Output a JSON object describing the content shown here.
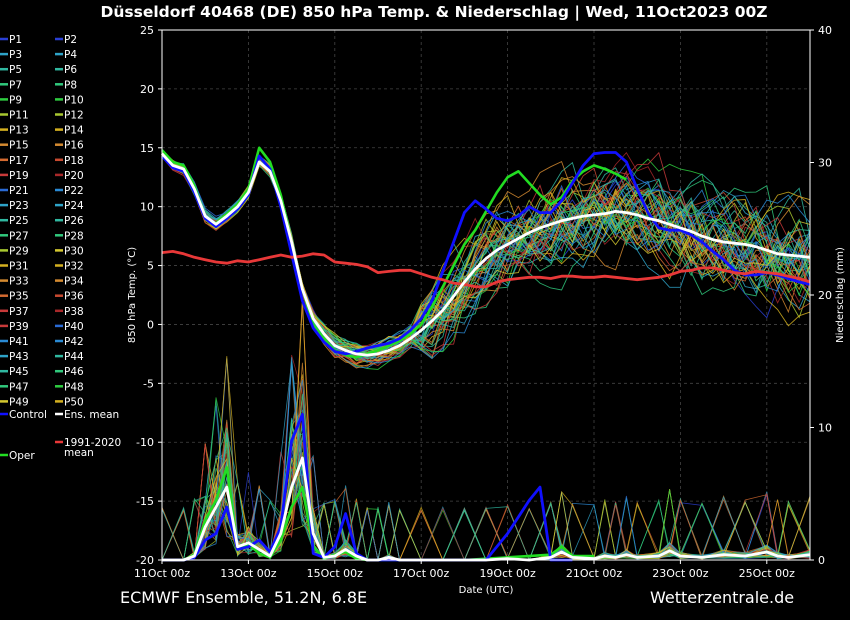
{
  "chart_data": {
    "type": "line",
    "title": "Düsseldorf 40468 (DE)  850 hPa Temp. & Niederschlag | Wed, 11Oct2023 00Z",
    "xlabel": "Date (UTC)",
    "ylabel_left": "850 hPa Temp. (°C)",
    "ylabel_right": "Niederschlag (mm)",
    "ylim_left": [
      -20,
      25
    ],
    "ylim_right": [
      0,
      40
    ],
    "left_ticks": [
      "25",
      "20",
      "15",
      "10",
      "5",
      "0",
      "-5",
      "-10",
      "-15",
      "-20"
    ],
    "right_ticks": [
      "40",
      "30",
      "20",
      "10",
      "0"
    ],
    "x_tick_labels": [
      "11Oct 00z",
      "13Oct 00z",
      "15Oct 00z",
      "17Oct 00z",
      "19Oct 00z",
      "21Oct 00z",
      "23Oct 00z",
      "25Oct 00z"
    ],
    "x_days": [
      0,
      15
    ],
    "grid": true,
    "legend_placement": "left",
    "legend": [
      {
        "label": "P1",
        "color": "#2a3fd4"
      },
      {
        "label": "P2",
        "color": "#2a3fd4"
      },
      {
        "label": "P3",
        "color": "#2ea3c8"
      },
      {
        "label": "P4",
        "color": "#2ea3c8"
      },
      {
        "label": "P5",
        "color": "#30b8a0"
      },
      {
        "label": "P6",
        "color": "#30b8a0"
      },
      {
        "label": "P7",
        "color": "#30c87c"
      },
      {
        "label": "P8",
        "color": "#30c87c"
      },
      {
        "label": "P9",
        "color": "#2ecc40"
      },
      {
        "label": "P10",
        "color": "#2ecc40"
      },
      {
        "label": "P11",
        "color": "#a8c830"
      },
      {
        "label": "P12",
        "color": "#a8c830"
      },
      {
        "label": "P13",
        "color": "#d4b020"
      },
      {
        "label": "P14",
        "color": "#d4b020"
      },
      {
        "label": "P15",
        "color": "#d48a30"
      },
      {
        "label": "P16",
        "color": "#d48a30"
      },
      {
        "label": "P17",
        "color": "#d46a30"
      },
      {
        "label": "P18",
        "color": "#c84a30"
      },
      {
        "label": "P19",
        "color": "#c83a3a"
      },
      {
        "label": "P20",
        "color": "#a8282a"
      },
      {
        "label": "P21",
        "color": "#2a6ad4"
      },
      {
        "label": "P22",
        "color": "#2a8ad4"
      },
      {
        "label": "P23",
        "color": "#2ea3c8"
      },
      {
        "label": "P24",
        "color": "#2ea3c8"
      },
      {
        "label": "P25",
        "color": "#30b8a0"
      },
      {
        "label": "P26",
        "color": "#30b8a0"
      },
      {
        "label": "P27",
        "color": "#30c87c"
      },
      {
        "label": "P28",
        "color": "#30c87c"
      },
      {
        "label": "P29",
        "color": "#a8c830"
      },
      {
        "label": "P30",
        "color": "#d4c830"
      },
      {
        "label": "P31",
        "color": "#d4b020"
      },
      {
        "label": "P32",
        "color": "#d4b020"
      },
      {
        "label": "P33",
        "color": "#d48a30"
      },
      {
        "label": "P34",
        "color": "#d48a30"
      },
      {
        "label": "P35",
        "color": "#d46a30"
      },
      {
        "label": "P36",
        "color": "#c84a30"
      },
      {
        "label": "P37",
        "color": "#c83a3a"
      },
      {
        "label": "P38",
        "color": "#a8282a"
      },
      {
        "label": "P39",
        "color": "#c83a3a"
      },
      {
        "label": "P40",
        "color": "#2a6ad4"
      },
      {
        "label": "P41",
        "color": "#2a8ad4"
      },
      {
        "label": "P42",
        "color": "#2a8ad4"
      },
      {
        "label": "P43",
        "color": "#2ea3c8"
      },
      {
        "label": "P44",
        "color": "#30b8a0"
      },
      {
        "label": "P45",
        "color": "#30b8a0"
      },
      {
        "label": "P46",
        "color": "#30c87c"
      },
      {
        "label": "P47",
        "color": "#30c87c"
      },
      {
        "label": "P48",
        "color": "#2ecc40"
      },
      {
        "label": "P49",
        "color": "#d4c830"
      },
      {
        "label": "P50",
        "color": "#d4b020"
      },
      {
        "label": "Control",
        "color": "#1010ff"
      },
      {
        "label": "Ens. mean",
        "color": "#ffffff"
      },
      {
        "label": "1991-2020\nmean",
        "color": "#e83838"
      },
      {
        "label": "Oper",
        "color": "#22dd22"
      }
    ],
    "ens_mean_temp": [
      [
        0,
        14.5
      ],
      [
        0.25,
        13.5
      ],
      [
        0.5,
        13.2
      ],
      [
        0.75,
        11.5
      ],
      [
        1,
        9.2
      ],
      [
        1.25,
        8.5
      ],
      [
        1.5,
        9.2
      ],
      [
        1.75,
        10
      ],
      [
        2,
        11.2
      ],
      [
        2.25,
        13.8
      ],
      [
        2.5,
        13
      ],
      [
        2.75,
        10.5
      ],
      [
        3,
        7
      ],
      [
        3.25,
        3
      ],
      [
        3.5,
        0.5
      ],
      [
        3.75,
        -0.8
      ],
      [
        4,
        -1.8
      ],
      [
        4.25,
        -2.2
      ],
      [
        4.5,
        -2.5
      ],
      [
        4.75,
        -2.6
      ],
      [
        5,
        -2.5
      ],
      [
        5.25,
        -2.2
      ],
      [
        5.5,
        -1.8
      ],
      [
        5.75,
        -1.2
      ],
      [
        6,
        -0.5
      ],
      [
        6.25,
        0.3
      ],
      [
        6.5,
        1.2
      ],
      [
        6.75,
        2.4
      ],
      [
        7,
        3.6
      ],
      [
        7.25,
        4.7
      ],
      [
        7.5,
        5.6
      ],
      [
        7.75,
        6.3
      ],
      [
        8,
        6.8
      ],
      [
        8.25,
        7.3
      ],
      [
        8.5,
        7.8
      ],
      [
        8.75,
        8.2
      ],
      [
        9,
        8.5
      ],
      [
        9.25,
        8.8
      ],
      [
        9.5,
        9.0
      ],
      [
        9.75,
        9.2
      ],
      [
        10,
        9.3
      ],
      [
        10.25,
        9.4
      ],
      [
        10.5,
        9.6
      ],
      [
        10.75,
        9.5
      ],
      [
        11,
        9.3
      ],
      [
        11.25,
        9.0
      ],
      [
        11.5,
        8.8
      ],
      [
        11.75,
        8.5
      ],
      [
        12,
        8.2
      ],
      [
        12.25,
        7.9
      ],
      [
        12.5,
        7.5
      ],
      [
        12.75,
        7.2
      ],
      [
        13,
        7.0
      ],
      [
        13.25,
        6.9
      ],
      [
        13.5,
        6.8
      ],
      [
        13.75,
        6.6
      ],
      [
        14,
        6.3
      ],
      [
        14.25,
        6.0
      ],
      [
        14.5,
        5.9
      ],
      [
        14.75,
        5.8
      ],
      [
        15,
        5.7
      ]
    ],
    "control_temp": [
      [
        0,
        14.3
      ],
      [
        0.25,
        13.3
      ],
      [
        0.5,
        13.0
      ],
      [
        0.75,
        11.2
      ],
      [
        1,
        9.0
      ],
      [
        1.25,
        8.3
      ],
      [
        1.5,
        9.0
      ],
      [
        1.75,
        9.8
      ],
      [
        2,
        11.0
      ],
      [
        2.25,
        14.3
      ],
      [
        2.5,
        13.2
      ],
      [
        2.75,
        10.0
      ],
      [
        3,
        6.0
      ],
      [
        3.25,
        2.0
      ],
      [
        3.5,
        -0.3
      ],
      [
        3.75,
        -1.5
      ],
      [
        4,
        -2.3
      ],
      [
        4.25,
        -2.5
      ],
      [
        4.5,
        -2.3
      ],
      [
        4.75,
        -2.0
      ],
      [
        5,
        -1.8
      ],
      [
        5.25,
        -1.6
      ],
      [
        5.5,
        -1.2
      ],
      [
        5.75,
        -0.5
      ],
      [
        6,
        0.5
      ],
      [
        6.25,
        2.0
      ],
      [
        6.5,
        4.5
      ],
      [
        6.75,
        7.0
      ],
      [
        7,
        9.5
      ],
      [
        7.25,
        10.5
      ],
      [
        7.5,
        9.8
      ],
      [
        7.75,
        9.0
      ],
      [
        8,
        8.8
      ],
      [
        8.25,
        9.2
      ],
      [
        8.5,
        10.0
      ],
      [
        8.75,
        9.5
      ],
      [
        9,
        9.5
      ],
      [
        9.25,
        10.5
      ],
      [
        9.5,
        12.0
      ],
      [
        9.75,
        13.5
      ],
      [
        10,
        14.5
      ],
      [
        10.25,
        14.6
      ],
      [
        10.5,
        14.6
      ],
      [
        10.75,
        13.8
      ],
      [
        11,
        11.5
      ],
      [
        11.25,
        9.5
      ],
      [
        11.5,
        8.2
      ],
      [
        11.75,
        8.0
      ],
      [
        12,
        8.0
      ],
      [
        12.25,
        7.6
      ],
      [
        12.5,
        7.0
      ],
      [
        12.75,
        6.2
      ],
      [
        13,
        5.5
      ],
      [
        13.25,
        4.6
      ],
      [
        13.5,
        4.2
      ],
      [
        13.75,
        4.2
      ],
      [
        14,
        4.4
      ],
      [
        14.25,
        4.2
      ],
      [
        14.5,
        3.9
      ],
      [
        14.75,
        3.6
      ],
      [
        15,
        3.4
      ]
    ],
    "oper_temp": [
      [
        0,
        14.8
      ],
      [
        0.25,
        13.8
      ],
      [
        0.5,
        13.5
      ],
      [
        0.75,
        11.8
      ],
      [
        1,
        9.0
      ],
      [
        1.25,
        8.6
      ],
      [
        1.5,
        9.4
      ],
      [
        1.75,
        10.2
      ],
      [
        2,
        11.5
      ],
      [
        2.25,
        15.0
      ],
      [
        2.5,
        13.8
      ],
      [
        2.75,
        11.0
      ],
      [
        3,
        7.0
      ],
      [
        3.25,
        3.0
      ],
      [
        3.5,
        0.0
      ],
      [
        3.75,
        -1.2
      ],
      [
        4,
        -2.2
      ],
      [
        4.25,
        -2.6
      ],
      [
        4.5,
        -2.8
      ],
      [
        4.75,
        -2.5
      ],
      [
        5,
        -2.2
      ],
      [
        5.25,
        -1.8
      ],
      [
        5.5,
        -1.4
      ],
      [
        5.75,
        -0.8
      ],
      [
        6,
        0.0
      ],
      [
        6.25,
        1.5
      ],
      [
        6.5,
        3.2
      ],
      [
        6.75,
        5.0
      ],
      [
        7,
        6.8
      ],
      [
        7.25,
        8.0
      ],
      [
        7.5,
        9.6
      ],
      [
        7.75,
        11.2
      ],
      [
        8,
        12.5
      ],
      [
        8.25,
        13.0
      ],
      [
        8.5,
        12.0
      ],
      [
        8.75,
        11.0
      ],
      [
        9,
        10.2
      ],
      [
        9.25,
        10.8
      ],
      [
        9.5,
        12.2
      ],
      [
        9.75,
        13.0
      ],
      [
        10,
        13.5
      ],
      [
        10.25,
        13.2
      ],
      [
        10.5,
        12.8
      ],
      [
        10.75,
        12.3
      ]
    ],
    "climate_mean_temp": [
      [
        0,
        6.1
      ],
      [
        0.25,
        6.2
      ],
      [
        0.5,
        6.0
      ],
      [
        0.75,
        5.7
      ],
      [
        1,
        5.5
      ],
      [
        1.25,
        5.3
      ],
      [
        1.5,
        5.2
      ],
      [
        1.75,
        5.4
      ],
      [
        2,
        5.3
      ],
      [
        2.25,
        5.5
      ],
      [
        2.5,
        5.7
      ],
      [
        2.75,
        5.9
      ],
      [
        3,
        5.7
      ],
      [
        3.25,
        5.8
      ],
      [
        3.5,
        6.0
      ],
      [
        3.75,
        5.9
      ],
      [
        4,
        5.3
      ],
      [
        4.25,
        5.2
      ],
      [
        4.5,
        5.1
      ],
      [
        4.75,
        4.9
      ],
      [
        5,
        4.4
      ],
      [
        5.25,
        4.5
      ],
      [
        5.5,
        4.6
      ],
      [
        5.75,
        4.6
      ],
      [
        6,
        4.3
      ],
      [
        6.25,
        4.0
      ],
      [
        6.5,
        3.8
      ],
      [
        6.75,
        3.5
      ],
      [
        7,
        3.4
      ],
      [
        7.25,
        3.2
      ],
      [
        7.5,
        3.2
      ],
      [
        7.75,
        3.6
      ],
      [
        8,
        3.8
      ],
      [
        8.25,
        3.9
      ],
      [
        8.5,
        4.0
      ],
      [
        8.75,
        4.0
      ],
      [
        9,
        3.9
      ],
      [
        9.25,
        4.1
      ],
      [
        9.5,
        4.1
      ],
      [
        9.75,
        4.0
      ],
      [
        10,
        4.0
      ],
      [
        10.25,
        4.1
      ],
      [
        10.5,
        4.0
      ],
      [
        10.75,
        3.9
      ],
      [
        11,
        3.8
      ],
      [
        11.25,
        3.9
      ],
      [
        11.5,
        4.0
      ],
      [
        11.75,
        4.2
      ],
      [
        12,
        4.5
      ],
      [
        12.25,
        4.6
      ],
      [
        12.5,
        4.8
      ],
      [
        12.75,
        4.8
      ],
      [
        13,
        4.6
      ],
      [
        13.25,
        4.4
      ],
      [
        13.5,
        4.3
      ],
      [
        13.75,
        4.5
      ],
      [
        14,
        4.4
      ],
      [
        14.25,
        4.3
      ],
      [
        14.5,
        4.1
      ],
      [
        14.75,
        3.9
      ],
      [
        15,
        3.6
      ]
    ],
    "ens_mean_precip": [
      [
        0,
        0
      ],
      [
        0.5,
        0
      ],
      [
        0.75,
        0.3
      ],
      [
        1,
        2.5
      ],
      [
        1.25,
        4.0
      ],
      [
        1.5,
        5.5
      ],
      [
        1.75,
        1.0
      ],
      [
        2,
        1.3
      ],
      [
        2.25,
        0.8
      ],
      [
        2.5,
        0.3
      ],
      [
        2.75,
        2.0
      ],
      [
        3,
        5.5
      ],
      [
        3.25,
        7.7
      ],
      [
        3.5,
        2.0
      ],
      [
        3.75,
        0.2
      ],
      [
        4,
        0.3
      ],
      [
        4.25,
        0.8
      ],
      [
        4.5,
        0.3
      ],
      [
        4.75,
        0
      ],
      [
        5,
        0
      ],
      [
        5.25,
        0.2
      ],
      [
        5.5,
        0
      ],
      [
        6,
        0
      ],
      [
        6.5,
        0
      ],
      [
        7,
        0
      ],
      [
        7.5,
        0
      ],
      [
        8,
        0.1
      ],
      [
        8.5,
        0
      ],
      [
        9,
        0.2
      ],
      [
        9.25,
        0.6
      ],
      [
        9.5,
        0.2
      ],
      [
        10,
        0.1
      ],
      [
        10.25,
        0.3
      ],
      [
        10.5,
        0.2
      ],
      [
        10.75,
        0.4
      ],
      [
        11,
        0.2
      ],
      [
        11.5,
        0.3
      ],
      [
        11.75,
        0.7
      ],
      [
        12,
        0.3
      ],
      [
        12.5,
        0.2
      ],
      [
        13,
        0.4
      ],
      [
        13.5,
        0.3
      ],
      [
        14,
        0.6
      ],
      [
        14.25,
        0.3
      ],
      [
        14.5,
        0.2
      ],
      [
        15,
        0.4
      ]
    ],
    "control_precip": [
      [
        0,
        0
      ],
      [
        0.5,
        0
      ],
      [
        0.75,
        0.2
      ],
      [
        1,
        1.5
      ],
      [
        1.25,
        2.0
      ],
      [
        1.5,
        4.0
      ],
      [
        1.75,
        0.8
      ],
      [
        2,
        1.0
      ],
      [
        2.25,
        1.5
      ],
      [
        2.5,
        0.6
      ],
      [
        2.75,
        2.5
      ],
      [
        3,
        9.0
      ],
      [
        3.25,
        11.0
      ],
      [
        3.5,
        0.5
      ],
      [
        3.75,
        0.2
      ],
      [
        4,
        1.0
      ],
      [
        4.25,
        3.5
      ],
      [
        4.5,
        0.5
      ],
      [
        4.75,
        0
      ],
      [
        5,
        0
      ],
      [
        6,
        0
      ],
      [
        7,
        0
      ],
      [
        7.5,
        0
      ],
      [
        8,
        2.0
      ],
      [
        8.5,
        4.5
      ],
      [
        8.75,
        5.5
      ],
      [
        9,
        0
      ],
      [
        9.5,
        0
      ]
    ],
    "oper_precip": [
      [
        0,
        0
      ],
      [
        0.5,
        0
      ],
      [
        0.75,
        0.4
      ],
      [
        1,
        3.0
      ],
      [
        1.25,
        4.5
      ],
      [
        1.5,
        7.0
      ],
      [
        1.75,
        0.8
      ],
      [
        2,
        1.2
      ],
      [
        2.25,
        0.5
      ],
      [
        2.5,
        0.2
      ],
      [
        2.75,
        1.5
      ],
      [
        3,
        4.0
      ],
      [
        3.25,
        5.5
      ],
      [
        3.5,
        1.0
      ],
      [
        3.75,
        0.1
      ],
      [
        4,
        0.4
      ],
      [
        4.25,
        0.6
      ],
      [
        4.5,
        0.1
      ],
      [
        4.75,
        0
      ],
      [
        6,
        0
      ],
      [
        7,
        0
      ],
      [
        9,
        0.4
      ],
      [
        9.25,
        1.0
      ],
      [
        9.5,
        0.3
      ],
      [
        10,
        0.3
      ]
    ]
  },
  "footer": {
    "model_info": "ECMWF Ensemble, 51.2N, 6.8E",
    "source": "Wetterzentrale.de"
  }
}
